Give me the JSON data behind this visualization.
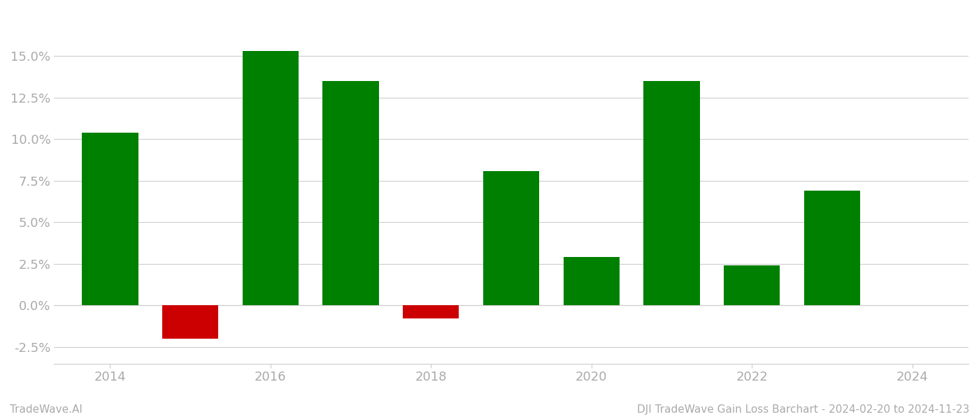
{
  "years": [
    2014,
    2015,
    2016,
    2017,
    2018,
    2019,
    2020,
    2021,
    2022,
    2023
  ],
  "values": [
    0.104,
    -0.02,
    0.153,
    0.135,
    -0.008,
    0.081,
    0.029,
    0.135,
    0.024,
    0.069
  ],
  "colors_positive": "#008000",
  "colors_negative": "#cc0000",
  "background_color": "#ffffff",
  "grid_color": "#cccccc",
  "footer_left": "TradeWave.AI",
  "footer_right": "DJI TradeWave Gain Loss Barchart - 2024-02-20 to 2024-11-23",
  "ylim": [
    -0.035,
    0.175
  ],
  "yticks": [
    -0.025,
    0.0,
    0.025,
    0.05,
    0.075,
    0.1,
    0.125,
    0.15
  ],
  "xticks": [
    2014,
    2016,
    2018,
    2020,
    2022,
    2024
  ],
  "xlim": [
    2013.3,
    2024.7
  ],
  "bar_width": 0.7,
  "tick_label_color": "#aaaaaa",
  "spine_color": "#cccccc",
  "footer_fontsize": 11,
  "tick_fontsize": 13
}
